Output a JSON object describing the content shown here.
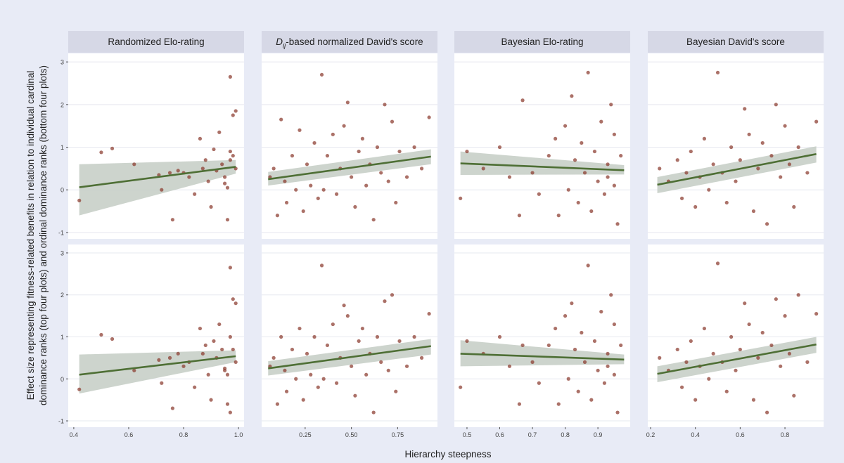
{
  "figure": {
    "ylabel_lines": [
      "Effect size representing fitness-related benefits in relation to individual cardinal",
      "dominance ranks (top four plots) and ordinal dominance ranks (bottom four plots)"
    ],
    "xlabel": "Hierarchy steepness"
  },
  "colors": {
    "page_bg": "#e8ebf6",
    "panel_bg": "#ffffff",
    "strip_bg": "#d6d8e6",
    "point": "#8b3a2e",
    "line": "#4e6f35",
    "ribbon": "#c4ccc4"
  },
  "chart_data": [
    {
      "type": "scatter",
      "title": "Randomized Elo-rating",
      "row": "top",
      "ylim": [
        -1.15,
        3.2
      ],
      "yticks": [
        -1,
        0,
        1,
        2,
        3
      ],
      "xlim": [
        0.39,
        1.01
      ],
      "xticks": [
        {
          "v": 0.4,
          "l": "0.4"
        },
        {
          "v": 0.6,
          "l": "0.6"
        },
        {
          "v": 0.8,
          "l": "0.8"
        },
        {
          "v": 1.0,
          "l": "1.0"
        }
      ],
      "fit": {
        "x": [
          0.42,
          0.99
        ],
        "y": [
          0.06,
          0.54
        ],
        "lo": [
          -0.6,
          0.38
        ],
        "hi": [
          0.6,
          0.7
        ]
      },
      "points": [
        [
          0.42,
          -0.25
        ],
        [
          0.5,
          0.88
        ],
        [
          0.54,
          0.97
        ],
        [
          0.62,
          0.6
        ],
        [
          0.71,
          0.35
        ],
        [
          0.72,
          0.0
        ],
        [
          0.75,
          0.4
        ],
        [
          0.76,
          -0.7
        ],
        [
          0.78,
          0.45
        ],
        [
          0.8,
          0.4
        ],
        [
          0.82,
          0.3
        ],
        [
          0.84,
          -0.1
        ],
        [
          0.86,
          1.2
        ],
        [
          0.87,
          0.5
        ],
        [
          0.88,
          0.7
        ],
        [
          0.89,
          0.2
        ],
        [
          0.9,
          -0.4
        ],
        [
          0.91,
          0.95
        ],
        [
          0.92,
          0.45
        ],
        [
          0.93,
          1.35
        ],
        [
          0.94,
          0.6
        ],
        [
          0.95,
          0.3
        ],
        [
          0.96,
          -0.7
        ],
        [
          0.97,
          2.65
        ],
        [
          0.98,
          1.75
        ],
        [
          0.99,
          1.85
        ],
        [
          0.97,
          0.9
        ],
        [
          0.96,
          0.05
        ],
        [
          0.98,
          0.8
        ],
        [
          0.99,
          0.5
        ],
        [
          0.95,
          0.15
        ],
        [
          0.97,
          0.7
        ]
      ]
    },
    {
      "type": "scatter",
      "title": "D_ij-based normalized David's score",
      "title_main": "D",
      "title_sub": "ij",
      "title_rest": "-based normalized David's score",
      "row": "top",
      "ylim": [
        -1.15,
        3.2
      ],
      "xlim": [
        0.03,
        0.95
      ],
      "xticks": [
        {
          "v": 0.25,
          "l": "0.25"
        },
        {
          "v": 0.5,
          "l": "0.50"
        },
        {
          "v": 0.75,
          "l": "0.75"
        }
      ],
      "fit": {
        "x": [
          0.05,
          0.93
        ],
        "y": [
          0.25,
          0.78
        ],
        "lo": [
          0.1,
          0.6
        ],
        "hi": [
          0.42,
          0.95
        ]
      },
      "points": [
        [
          0.06,
          0.3
        ],
        [
          0.08,
          0.5
        ],
        [
          0.1,
          -0.6
        ],
        [
          0.12,
          1.65
        ],
        [
          0.14,
          0.2
        ],
        [
          0.15,
          -0.3
        ],
        [
          0.18,
          0.8
        ],
        [
          0.2,
          0.0
        ],
        [
          0.22,
          1.4
        ],
        [
          0.24,
          -0.5
        ],
        [
          0.26,
          0.6
        ],
        [
          0.28,
          0.1
        ],
        [
          0.3,
          1.1
        ],
        [
          0.32,
          -0.2
        ],
        [
          0.34,
          2.7
        ],
        [
          0.35,
          0.0
        ],
        [
          0.37,
          0.8
        ],
        [
          0.4,
          1.3
        ],
        [
          0.42,
          -0.1
        ],
        [
          0.44,
          0.5
        ],
        [
          0.46,
          1.5
        ],
        [
          0.48,
          2.05
        ],
        [
          0.5,
          0.3
        ],
        [
          0.52,
          -0.4
        ],
        [
          0.54,
          0.9
        ],
        [
          0.56,
          1.2
        ],
        [
          0.58,
          0.1
        ],
        [
          0.6,
          0.6
        ],
        [
          0.62,
          -0.7
        ],
        [
          0.64,
          1.0
        ],
        [
          0.66,
          0.4
        ],
        [
          0.68,
          2.0
        ],
        [
          0.7,
          0.2
        ],
        [
          0.72,
          1.6
        ],
        [
          0.74,
          -0.3
        ],
        [
          0.76,
          0.9
        ],
        [
          0.8,
          0.3
        ],
        [
          0.84,
          1.0
        ],
        [
          0.88,
          0.5
        ],
        [
          0.92,
          1.7
        ]
      ]
    },
    {
      "type": "scatter",
      "title": "Bayesian Elo-rating",
      "row": "top",
      "ylim": [
        -1.15,
        3.2
      ],
      "xlim": [
        0.47,
        0.99
      ],
      "xticks": [
        {
          "v": 0.5,
          "l": "0.5"
        },
        {
          "v": 0.6,
          "l": "0.6"
        },
        {
          "v": 0.7,
          "l": "0.7"
        },
        {
          "v": 0.8,
          "l": "0.8"
        },
        {
          "v": 0.9,
          "l": "0.9"
        }
      ],
      "fit": {
        "x": [
          0.48,
          0.98
        ],
        "y": [
          0.62,
          0.46
        ],
        "lo": [
          0.35,
          0.36
        ],
        "hi": [
          0.9,
          0.58
        ]
      },
      "points": [
        [
          0.48,
          -0.2
        ],
        [
          0.5,
          0.9
        ],
        [
          0.55,
          0.5
        ],
        [
          0.6,
          1.0
        ],
        [
          0.63,
          0.3
        ],
        [
          0.66,
          -0.6
        ],
        [
          0.67,
          2.1
        ],
        [
          0.7,
          0.4
        ],
        [
          0.72,
          -0.1
        ],
        [
          0.75,
          0.8
        ],
        [
          0.77,
          1.2
        ],
        [
          0.78,
          -0.6
        ],
        [
          0.8,
          1.5
        ],
        [
          0.81,
          0.0
        ],
        [
          0.82,
          2.2
        ],
        [
          0.83,
          0.7
        ],
        [
          0.84,
          -0.3
        ],
        [
          0.85,
          1.1
        ],
        [
          0.86,
          0.4
        ],
        [
          0.87,
          2.75
        ],
        [
          0.88,
          -0.5
        ],
        [
          0.89,
          0.9
        ],
        [
          0.9,
          0.2
        ],
        [
          0.91,
          1.6
        ],
        [
          0.92,
          -0.1
        ],
        [
          0.93,
          0.6
        ],
        [
          0.94,
          2.0
        ],
        [
          0.95,
          0.1
        ],
        [
          0.96,
          -0.8
        ],
        [
          0.97,
          0.8
        ],
        [
          0.95,
          1.3
        ],
        [
          0.93,
          0.3
        ]
      ]
    },
    {
      "type": "scatter",
      "title": "Bayesian David's score",
      "row": "top",
      "ylim": [
        -1.15,
        3.2
      ],
      "xlim": [
        0.2,
        0.96
      ],
      "xticks": [
        {
          "v": 0.2,
          "l": "0.2"
        },
        {
          "v": 0.4,
          "l": "0.4"
        },
        {
          "v": 0.6,
          "l": "0.6"
        },
        {
          "v": 0.8,
          "l": "0.8"
        }
      ],
      "fit": {
        "x": [
          0.23,
          0.94
        ],
        "y": [
          0.12,
          0.84
        ],
        "lo": [
          -0.08,
          0.64
        ],
        "hi": [
          0.3,
          1.02
        ]
      },
      "points": [
        [
          0.24,
          0.5
        ],
        [
          0.28,
          0.2
        ],
        [
          0.32,
          0.7
        ],
        [
          0.34,
          -0.2
        ],
        [
          0.36,
          0.4
        ],
        [
          0.38,
          0.9
        ],
        [
          0.4,
          -0.4
        ],
        [
          0.42,
          0.3
        ],
        [
          0.44,
          1.2
        ],
        [
          0.46,
          0.0
        ],
        [
          0.48,
          0.6
        ],
        [
          0.5,
          2.75
        ],
        [
          0.52,
          0.4
        ],
        [
          0.54,
          -0.3
        ],
        [
          0.56,
          1.0
        ],
        [
          0.58,
          0.2
        ],
        [
          0.6,
          0.7
        ],
        [
          0.62,
          1.9
        ],
        [
          0.64,
          1.3
        ],
        [
          0.66,
          -0.5
        ],
        [
          0.68,
          0.5
        ],
        [
          0.7,
          1.1
        ],
        [
          0.72,
          -0.8
        ],
        [
          0.74,
          0.8
        ],
        [
          0.76,
          2.0
        ],
        [
          0.78,
          0.3
        ],
        [
          0.8,
          1.5
        ],
        [
          0.82,
          0.6
        ],
        [
          0.84,
          -0.4
        ],
        [
          0.86,
          1.0
        ],
        [
          0.9,
          0.4
        ],
        [
          0.94,
          1.6
        ]
      ]
    },
    {
      "type": "scatter",
      "row": "bottom",
      "ylim": [
        -1.15,
        3.2
      ],
      "xlim": [
        0.39,
        1.01
      ],
      "fit": {
        "x": [
          0.42,
          0.99
        ],
        "y": [
          0.1,
          0.54
        ],
        "lo": [
          -0.35,
          0.4
        ],
        "hi": [
          0.58,
          0.68
        ]
      },
      "points": [
        [
          0.42,
          -0.25
        ],
        [
          0.5,
          1.05
        ],
        [
          0.54,
          0.95
        ],
        [
          0.62,
          0.2
        ],
        [
          0.71,
          0.45
        ],
        [
          0.72,
          -0.1
        ],
        [
          0.75,
          0.5
        ],
        [
          0.76,
          -0.7
        ],
        [
          0.78,
          0.6
        ],
        [
          0.8,
          0.3
        ],
        [
          0.82,
          0.4
        ],
        [
          0.84,
          -0.2
        ],
        [
          0.86,
          1.2
        ],
        [
          0.87,
          0.6
        ],
        [
          0.88,
          0.8
        ],
        [
          0.89,
          0.1
        ],
        [
          0.9,
          -0.5
        ],
        [
          0.91,
          0.9
        ],
        [
          0.92,
          0.5
        ],
        [
          0.93,
          1.3
        ],
        [
          0.94,
          0.7
        ],
        [
          0.95,
          0.2
        ],
        [
          0.96,
          -0.6
        ],
        [
          0.97,
          2.65
        ],
        [
          0.98,
          1.9
        ],
        [
          0.99,
          1.8
        ],
        [
          0.97,
          1.0
        ],
        [
          0.96,
          0.1
        ],
        [
          0.98,
          0.7
        ],
        [
          0.99,
          0.4
        ],
        [
          0.95,
          0.25
        ],
        [
          0.97,
          -0.8
        ]
      ]
    },
    {
      "type": "scatter",
      "row": "bottom",
      "ylim": [
        -1.15,
        3.2
      ],
      "xlim": [
        0.03,
        0.95
      ],
      "fit": {
        "x": [
          0.05,
          0.93
        ],
        "y": [
          0.25,
          0.78
        ],
        "lo": [
          0.08,
          0.58
        ],
        "hi": [
          0.42,
          0.95
        ]
      },
      "points": [
        [
          0.06,
          0.3
        ],
        [
          0.08,
          0.5
        ],
        [
          0.1,
          -0.6
        ],
        [
          0.12,
          1.0
        ],
        [
          0.14,
          0.2
        ],
        [
          0.15,
          -0.3
        ],
        [
          0.18,
          0.7
        ],
        [
          0.2,
          0.0
        ],
        [
          0.22,
          1.2
        ],
        [
          0.24,
          -0.5
        ],
        [
          0.26,
          0.6
        ],
        [
          0.28,
          0.1
        ],
        [
          0.3,
          1.0
        ],
        [
          0.32,
          -0.2
        ],
        [
          0.34,
          2.7
        ],
        [
          0.35,
          0.0
        ],
        [
          0.37,
          0.8
        ],
        [
          0.4,
          1.3
        ],
        [
          0.42,
          -0.1
        ],
        [
          0.44,
          0.5
        ],
        [
          0.46,
          1.75
        ],
        [
          0.48,
          1.5
        ],
        [
          0.5,
          0.3
        ],
        [
          0.52,
          -0.4
        ],
        [
          0.54,
          0.9
        ],
        [
          0.56,
          1.2
        ],
        [
          0.58,
          0.1
        ],
        [
          0.6,
          0.6
        ],
        [
          0.62,
          -0.8
        ],
        [
          0.64,
          1.0
        ],
        [
          0.66,
          0.4
        ],
        [
          0.68,
          1.85
        ],
        [
          0.7,
          0.2
        ],
        [
          0.72,
          2.0
        ],
        [
          0.74,
          -0.3
        ],
        [
          0.76,
          0.9
        ],
        [
          0.8,
          0.3
        ],
        [
          0.84,
          1.0
        ],
        [
          0.88,
          0.5
        ],
        [
          0.92,
          1.55
        ]
      ]
    },
    {
      "type": "scatter",
      "row": "bottom",
      "ylim": [
        -1.15,
        3.2
      ],
      "xlim": [
        0.47,
        0.99
      ],
      "fit": {
        "x": [
          0.48,
          0.98
        ],
        "y": [
          0.6,
          0.46
        ],
        "lo": [
          0.3,
          0.35
        ],
        "hi": [
          0.92,
          0.58
        ]
      },
      "points": [
        [
          0.48,
          -0.2
        ],
        [
          0.5,
          0.9
        ],
        [
          0.55,
          0.6
        ],
        [
          0.6,
          1.0
        ],
        [
          0.63,
          0.3
        ],
        [
          0.66,
          -0.6
        ],
        [
          0.67,
          0.8
        ],
        [
          0.7,
          0.4
        ],
        [
          0.72,
          -0.1
        ],
        [
          0.75,
          0.8
        ],
        [
          0.77,
          1.2
        ],
        [
          0.78,
          -0.6
        ],
        [
          0.8,
          1.5
        ],
        [
          0.81,
          0.0
        ],
        [
          0.82,
          1.8
        ],
        [
          0.83,
          0.7
        ],
        [
          0.84,
          -0.3
        ],
        [
          0.85,
          1.1
        ],
        [
          0.86,
          0.4
        ],
        [
          0.87,
          2.7
        ],
        [
          0.88,
          -0.5
        ],
        [
          0.89,
          0.9
        ],
        [
          0.9,
          0.2
        ],
        [
          0.91,
          1.6
        ],
        [
          0.92,
          -0.1
        ],
        [
          0.93,
          0.6
        ],
        [
          0.94,
          2.0
        ],
        [
          0.95,
          0.1
        ],
        [
          0.96,
          -0.8
        ],
        [
          0.97,
          0.8
        ],
        [
          0.95,
          1.3
        ],
        [
          0.93,
          0.3
        ]
      ]
    },
    {
      "type": "scatter",
      "row": "bottom",
      "ylim": [
        -1.15,
        3.2
      ],
      "xlim": [
        0.2,
        0.96
      ],
      "fit": {
        "x": [
          0.23,
          0.94
        ],
        "y": [
          0.12,
          0.82
        ],
        "lo": [
          -0.08,
          0.62
        ],
        "hi": [
          0.3,
          1.0
        ]
      },
      "points": [
        [
          0.24,
          0.5
        ],
        [
          0.28,
          0.2
        ],
        [
          0.32,
          0.7
        ],
        [
          0.34,
          -0.2
        ],
        [
          0.36,
          0.4
        ],
        [
          0.38,
          0.9
        ],
        [
          0.4,
          -0.5
        ],
        [
          0.42,
          0.3
        ],
        [
          0.44,
          1.2
        ],
        [
          0.46,
          0.0
        ],
        [
          0.48,
          0.6
        ],
        [
          0.5,
          2.75
        ],
        [
          0.52,
          0.4
        ],
        [
          0.54,
          -0.3
        ],
        [
          0.56,
          1.0
        ],
        [
          0.58,
          0.2
        ],
        [
          0.6,
          0.7
        ],
        [
          0.62,
          1.8
        ],
        [
          0.64,
          1.3
        ],
        [
          0.66,
          -0.5
        ],
        [
          0.68,
          0.5
        ],
        [
          0.7,
          1.1
        ],
        [
          0.72,
          -0.8
        ],
        [
          0.74,
          0.8
        ],
        [
          0.76,
          1.9
        ],
        [
          0.78,
          0.3
        ],
        [
          0.8,
          1.5
        ],
        [
          0.82,
          0.6
        ],
        [
          0.84,
          -0.4
        ],
        [
          0.86,
          2.0
        ],
        [
          0.9,
          0.4
        ],
        [
          0.94,
          1.55
        ]
      ]
    }
  ]
}
